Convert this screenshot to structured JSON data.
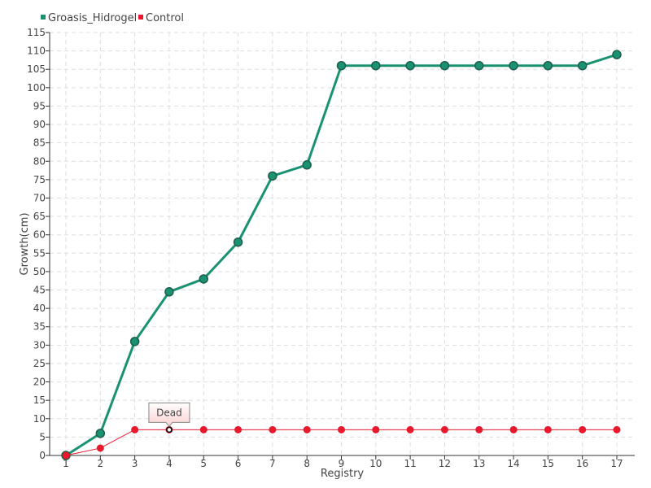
{
  "chart_data": {
    "type": "line",
    "title": "",
    "xlabel": "Registry",
    "ylabel": "Growth(cm)",
    "categories": [
      "1",
      "2",
      "3",
      "4",
      "5",
      "6",
      "7",
      "8",
      "9",
      "10",
      "11",
      "12",
      "13",
      "14",
      "15",
      "16",
      "17"
    ],
    "ylim": [
      0,
      115
    ],
    "ytick_step": 5,
    "grid": true,
    "legend_position": "top-left",
    "series": [
      {
        "name": "Groasis_Hidrogel",
        "color": "#1a9272",
        "values": [
          0,
          6,
          31,
          44.5,
          48,
          58,
          76,
          79,
          106,
          106,
          106,
          106,
          106,
          106,
          106,
          106,
          109
        ]
      },
      {
        "name": "Control",
        "color": "#e8192c",
        "values": [
          0,
          2,
          7,
          7,
          7,
          7,
          7,
          7,
          7,
          7,
          7,
          7,
          7,
          7,
          7,
          7,
          7
        ]
      }
    ],
    "annotations": [
      {
        "text": "Dead",
        "series": "Control",
        "category": "4"
      }
    ]
  }
}
